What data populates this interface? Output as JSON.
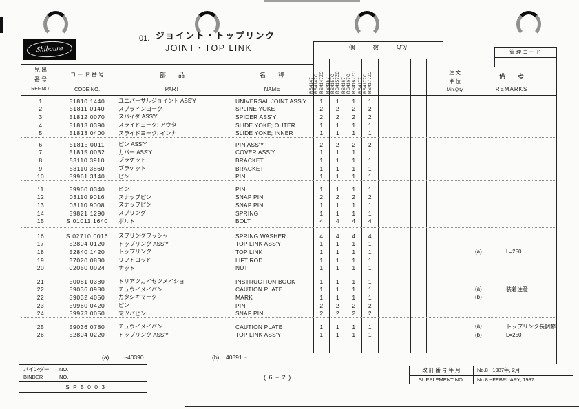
{
  "page": {
    "logo_text": "Shibaura",
    "title_no": "01.",
    "title_jp": "ジョイント・トップリンク",
    "title_en": "JOINT・TOP LINK",
    "page_number": "( 6 − 2 )",
    "control_code_label": "管 理 コ ー ド"
  },
  "table": {
    "headers": {
      "ref_jp1": "見 出",
      "ref_jp2": "番 号",
      "ref_en": "REF.NO.",
      "code_jp": "コ ー ド 番 号",
      "code_en": "CODE  NO.",
      "part_jp": "部　　品",
      "part_en": "PART",
      "name_jp": "名　　称",
      "name_en": "NAME",
      "qty_jp1": "個",
      "qty_jp2": "数",
      "qty_en": "Q'ty",
      "min_jp1": "注 文",
      "min_jp2": "単 位",
      "min_en": "Min.Q'ty",
      "remarks_jp": "備　　考",
      "remarks_en": "REMARKS"
    },
    "models": [
      "RS4147",
      "RS4147C",
      "RS4147ZC",
      "RS4157",
      "RS4157C",
      "RS4157ZC",
      "RS4167",
      "RS4167C",
      "RS4167ZC",
      "RS4177",
      "RS4177C",
      "RS4177ZC"
    ],
    "groups": [
      {
        "rows": [
          {
            "ref": "1",
            "code": "51810 1440",
            "part": "ユニバーサルジョイント ASS'Y",
            "name": "UNIVERSAL JOINT ASS'Y",
            "qty": [
              "1",
              "1",
              "1",
              "1"
            ]
          },
          {
            "ref": "2",
            "code": "51811 0140",
            "part": "スプラインヨーク",
            "name": "SPLINE YOKE",
            "qty": [
              "2",
              "2",
              "2",
              "2"
            ]
          },
          {
            "ref": "3",
            "code": "51812 0070",
            "part": "スパイダ ASS'Y",
            "name": "SPIDER ASS'Y",
            "qty": [
              "2",
              "2",
              "2",
              "2"
            ]
          },
          {
            "ref": "4",
            "code": "51813 0390",
            "part": "スライドヨーク; アウタ",
            "name": "SLIDE YOKE; OUTER",
            "qty": [
              "1",
              "1",
              "1",
              "1"
            ]
          },
          {
            "ref": "5",
            "code": "51813 0400",
            "part": "スライドヨーク; インナ",
            "name": "SLIDE YOKE; INNER",
            "qty": [
              "1",
              "1",
              "1",
              "1"
            ]
          }
        ]
      },
      {
        "rows": [
          {
            "ref": "6",
            "code": "51815 0011",
            "part": "ピン ASS'Y",
            "name": "PIN ASS'Y",
            "qty": [
              "2",
              "2",
              "2",
              "2"
            ]
          },
          {
            "ref": "7",
            "code": "51815 0032",
            "part": "カバー ASS'Y",
            "name": "COVER ASS'Y",
            "qty": [
              "1",
              "1",
              "1",
              "1"
            ]
          },
          {
            "ref": "8",
            "code": "53110 3910",
            "part": "ブラケット",
            "name": "BRACKET",
            "qty": [
              "1",
              "1",
              "1",
              "1"
            ]
          },
          {
            "ref": "9",
            "code": "53110 3860",
            "part": "ブラケット",
            "name": "BRACKET",
            "qty": [
              "1",
              "1",
              "1",
              "1"
            ]
          },
          {
            "ref": "10",
            "code": "59961 3140",
            "part": "ピン",
            "name": "PIN",
            "qty": [
              "1",
              "1",
              "1",
              "1"
            ]
          }
        ]
      },
      {
        "rows": [
          {
            "ref": "11",
            "code": "59960 0340",
            "part": "ピン",
            "name": "PIN",
            "qty": [
              "1",
              "1",
              "1",
              "1"
            ]
          },
          {
            "ref": "12",
            "code": "03110 9016",
            "part": "スナップピン",
            "name": "SNAP PIN",
            "qty": [
              "2",
              "2",
              "2",
              "2"
            ]
          },
          {
            "ref": "13",
            "code": "03110 9008",
            "part": "スナップピン",
            "name": "SNAP PIN",
            "qty": [
              "1",
              "1",
              "1",
              "1"
            ]
          },
          {
            "ref": "14",
            "code": "59821 1290",
            "part": "スプリング",
            "name": "SPRING",
            "qty": [
              "1",
              "1",
              "1",
              "1"
            ]
          },
          {
            "ref": "15",
            "code": "S 01011 1640",
            "part": "ボルト",
            "name": "BOLT",
            "qty": [
              "4",
              "4",
              "4",
              "4"
            ]
          }
        ]
      },
      {
        "rows": [
          {
            "ref": "16",
            "code": "S 02710 0016",
            "part": "スプリングワッシャ",
            "name": "SPRING WASHER",
            "qty": [
              "4",
              "4",
              "4",
              "4"
            ]
          },
          {
            "ref": "17",
            "code": "52804 0120",
            "part": "トップリンク ASS'Y",
            "name": "TOP LINK ASS'Y",
            "qty": [
              "1",
              "1",
              "1",
              "1"
            ]
          },
          {
            "ref": "18",
            "code": "52840 1420",
            "part": "トップリンク",
            "name": "TOP LINK",
            "qty": [
              "1",
              "1",
              "1",
              "1"
            ],
            "remark": {
              "tag": "(a)",
              "text": "L=250"
            }
          },
          {
            "ref": "19",
            "code": "37020 0830",
            "part": "リフトロッド",
            "name": "LIFT ROD",
            "qty": [
              "1",
              "1",
              "1",
              "1"
            ]
          },
          {
            "ref": "20",
            "code": "02050 0024",
            "part": "ナット",
            "name": "NUT",
            "qty": [
              "1",
              "1",
              "1",
              "1"
            ]
          }
        ]
      },
      {
        "rows": [
          {
            "ref": "21",
            "code": "50081 0380",
            "part": "トリアツカイセツメイショ",
            "name": "INSTRUCTION BOOK",
            "qty": [
              "1",
              "1",
              "1",
              "1"
            ]
          },
          {
            "ref": "22",
            "code": "59036 0980",
            "part": "チュウイメイバン",
            "name": "CAUTION PLATE",
            "qty": [
              "1",
              "1",
              "1",
              "1"
            ],
            "remark": {
              "tag": "(a)",
              "text": "装着注意"
            }
          },
          {
            "ref": "22",
            "code": "59032 4050",
            "part": "カタシキマーク",
            "name": "MARK",
            "qty": [
              "1",
              "1",
              "1",
              "1"
            ],
            "remark": {
              "tag": "(b)",
              "text": ""
            }
          },
          {
            "ref": "23",
            "code": "59960 0420",
            "part": "ピン",
            "name": "PIN",
            "qty": [
              "2",
              "2",
              "2",
              "2"
            ]
          },
          {
            "ref": "24",
            "code": "59973 0050",
            "part": "マツバピン",
            "name": "SNAP PIN",
            "qty": [
              "2",
              "2",
              "2",
              "2"
            ]
          }
        ]
      },
      {
        "rows": [
          {
            "ref": "25",
            "code": "59036 0780",
            "part": "チュウイメイバン",
            "name": "CAUTION PLATE",
            "qty": [
              "1",
              "1",
              "1",
              "1"
            ],
            "remark": {
              "tag": "(a)",
              "text": "トップリンク長調節"
            }
          },
          {
            "ref": "26",
            "code": "52804 0220",
            "part": "トップリンク ASS'Y",
            "name": "TOP LINK ASS'Y",
            "qty": [
              "1",
              "1",
              "1",
              "1"
            ],
            "remark": {
              "tag": "(b)",
              "text": "L=250"
            }
          }
        ]
      }
    ],
    "footnotes": {
      "a_label": "(a)",
      "a_range": "~40390",
      "b_label": "(b)",
      "b_range": "40391 ~"
    }
  },
  "footer": {
    "binder_jp": "バインダー",
    "binder_jp_no": "NO.",
    "binder_en": "BINDER",
    "binder_en_no": "NO.",
    "binder_value": "I S P 5 0 0 3",
    "supplement_jp": "改 訂 番 号 年 月",
    "supplement_jp_value": "No.8 −1987年, 2月",
    "supplement_en": "SUPPLEMENT  NO.",
    "supplement_en_value": "No.8 −FEBRUARY, 1987"
  }
}
